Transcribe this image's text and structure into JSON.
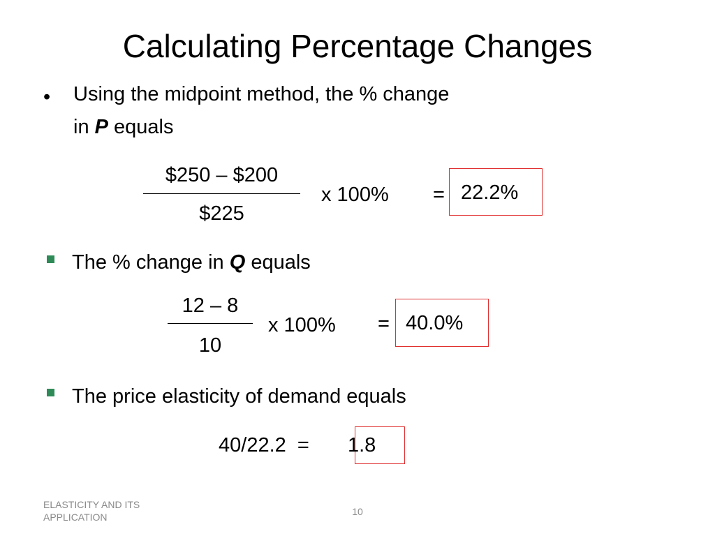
{
  "title": "Calculating Percentage Changes",
  "colors": {
    "bullet_square": "#2e8b57",
    "highlight_box": "#e03030",
    "footer_text": "#8a8a8a"
  },
  "bullet1": {
    "line1": "Using the midpoint method, the % change",
    "line2_prefix": "in ",
    "line2_var": "P",
    "line2_suffix": " equals",
    "numerator": "$250 – $200",
    "denominator": "$225",
    "multiplier": "x 100%",
    "equals": "=",
    "result": "22.2%"
  },
  "bullet2": {
    "prefix": "The % change in ",
    "var": "Q",
    "suffix": " equals",
    "numerator": "12 – 8",
    "denominator": "10",
    "multiplier": "x 100%",
    "equals": "=",
    "result": "40.0%"
  },
  "bullet3": {
    "text": "The price elasticity of demand equals",
    "expression": "40/22.2  =",
    "result": "1.8"
  },
  "footer": {
    "left_line1": "ELASTICITY AND ITS",
    "left_line2": "APPLICATION",
    "page_number": "10"
  }
}
